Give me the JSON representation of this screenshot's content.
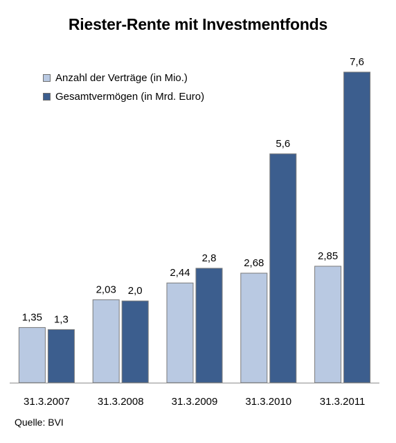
{
  "chart_data": {
    "type": "bar",
    "title": "Riester-Rente mit Investmentfonds",
    "categories": [
      "31.3.2007",
      "31.3.2008",
      "31.3.2009",
      "31.3.2010",
      "31.3.2011"
    ],
    "series": [
      {
        "name": "Anzahl der Verträge (in Mio.)",
        "values": [
          1.35,
          2.03,
          2.44,
          2.68,
          2.85
        ],
        "labels": [
          "1,35",
          "2,03",
          "2,44",
          "2,68",
          "2,85"
        ],
        "color": "#b9c9e2"
      },
      {
        "name": "Gesamtvermögen (in Mrd. Euro)",
        "values": [
          1.3,
          2.0,
          2.8,
          5.6,
          7.6
        ],
        "labels": [
          "1,3",
          "2,0",
          "2,8",
          "5,6",
          "7,6"
        ],
        "color": "#3c5e8e"
      }
    ],
    "ylim": [
      0,
      7.6
    ],
    "grid": false,
    "legend_position": "top-left",
    "source": "Quelle: BVI"
  }
}
